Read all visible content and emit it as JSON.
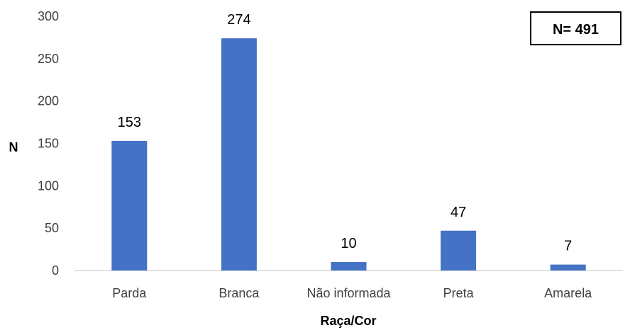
{
  "chart_data": {
    "type": "bar",
    "categories": [
      "Parda",
      "Branca",
      "Não informada",
      "Preta",
      "Amarela"
    ],
    "values": [
      153,
      274,
      10,
      47,
      7
    ],
    "data_labels": [
      "153",
      "274",
      "10",
      "47",
      "7"
    ],
    "title": "",
    "xlabel": "Raça/Cor",
    "ylabel": "N",
    "ylim": [
      0,
      300
    ],
    "yticks": [
      0,
      50,
      100,
      150,
      200,
      250,
      300
    ],
    "grid": false,
    "bar_color": "#4472C4",
    "annotation": "N= 491"
  }
}
